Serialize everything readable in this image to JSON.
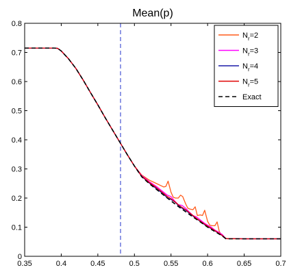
{
  "chart_data": {
    "type": "line",
    "title": "Mean(p)",
    "xlabel": "",
    "ylabel": "",
    "xlim": [
      0.35,
      0.7
    ],
    "ylim": [
      0,
      0.8
    ],
    "xticks": [
      "0.35",
      "0.4",
      "0.45",
      "0.5",
      "0.55",
      "0.6",
      "0.65",
      "0.7"
    ],
    "yticks": [
      "0",
      "0.1",
      "0.2",
      "0.3",
      "0.4",
      "0.5",
      "0.6",
      "0.7",
      "0.8"
    ],
    "grid": false,
    "legend_position": "top-right",
    "vertical_line": {
      "x": 0.481,
      "style": "dashed",
      "color": "#2233cc"
    },
    "series": [
      {
        "name": "N_r=2",
        "color": "#ff5a1a",
        "style": "solid",
        "x": [
          0.35,
          0.385,
          0.39,
          0.395,
          0.4,
          0.41,
          0.42,
          0.43,
          0.44,
          0.45,
          0.46,
          0.47,
          0.48,
          0.49,
          0.5,
          0.51,
          0.52,
          0.53,
          0.535,
          0.54,
          0.543,
          0.546,
          0.55,
          0.553,
          0.556,
          0.56,
          0.563,
          0.566,
          0.57,
          0.573,
          0.576,
          0.58,
          0.583,
          0.586,
          0.59,
          0.593,
          0.596,
          0.6,
          0.603,
          0.606,
          0.61,
          0.613,
          0.616,
          0.62,
          0.623,
          0.627,
          0.65,
          0.7
        ],
        "y": [
          0.715,
          0.715,
          0.715,
          0.714,
          0.705,
          0.678,
          0.645,
          0.605,
          0.562,
          0.52,
          0.476,
          0.434,
          0.392,
          0.35,
          0.31,
          0.279,
          0.262,
          0.25,
          0.244,
          0.238,
          0.24,
          0.258,
          0.22,
          0.203,
          0.2,
          0.2,
          0.21,
          0.205,
          0.18,
          0.165,
          0.162,
          0.16,
          0.17,
          0.14,
          0.142,
          0.14,
          0.158,
          0.12,
          0.107,
          0.105,
          0.105,
          0.118,
          0.085,
          0.07,
          0.064,
          0.06,
          0.06,
          0.06
        ]
      },
      {
        "name": "N_r=3",
        "color": "#ff00ff",
        "style": "solid",
        "x": [
          0.35,
          0.385,
          0.39,
          0.395,
          0.4,
          0.41,
          0.42,
          0.43,
          0.44,
          0.45,
          0.46,
          0.47,
          0.48,
          0.49,
          0.5,
          0.51,
          0.52,
          0.53,
          0.54,
          0.545,
          0.55,
          0.555,
          0.56,
          0.565,
          0.57,
          0.575,
          0.58,
          0.585,
          0.59,
          0.595,
          0.6,
          0.605,
          0.61,
          0.615,
          0.62,
          0.625,
          0.65,
          0.7
        ],
        "y": [
          0.715,
          0.715,
          0.715,
          0.714,
          0.705,
          0.678,
          0.645,
          0.605,
          0.562,
          0.52,
          0.476,
          0.434,
          0.392,
          0.35,
          0.31,
          0.277,
          0.257,
          0.24,
          0.22,
          0.21,
          0.205,
          0.19,
          0.177,
          0.175,
          0.165,
          0.152,
          0.14,
          0.135,
          0.125,
          0.115,
          0.107,
          0.1,
          0.09,
          0.083,
          0.075,
          0.061,
          0.06,
          0.06
        ]
      },
      {
        "name": "N_r=4",
        "color": "#1a1aa8",
        "style": "solid",
        "x": [
          0.35,
          0.385,
          0.39,
          0.395,
          0.4,
          0.41,
          0.42,
          0.43,
          0.44,
          0.45,
          0.46,
          0.47,
          0.48,
          0.49,
          0.5,
          0.51,
          0.52,
          0.53,
          0.54,
          0.545,
          0.55,
          0.555,
          0.56,
          0.565,
          0.57,
          0.575,
          0.58,
          0.585,
          0.59,
          0.595,
          0.6,
          0.605,
          0.61,
          0.615,
          0.62,
          0.625,
          0.65,
          0.7
        ],
        "y": [
          0.715,
          0.715,
          0.715,
          0.714,
          0.705,
          0.678,
          0.645,
          0.605,
          0.562,
          0.52,
          0.476,
          0.434,
          0.392,
          0.35,
          0.31,
          0.274,
          0.252,
          0.232,
          0.213,
          0.2,
          0.195,
          0.187,
          0.175,
          0.165,
          0.158,
          0.148,
          0.138,
          0.128,
          0.12,
          0.11,
          0.102,
          0.095,
          0.087,
          0.079,
          0.071,
          0.061,
          0.06,
          0.06
        ]
      },
      {
        "name": "N_r=5",
        "color": "#e00000",
        "style": "solid",
        "x": [
          0.35,
          0.385,
          0.39,
          0.395,
          0.4,
          0.41,
          0.42,
          0.43,
          0.44,
          0.45,
          0.46,
          0.47,
          0.48,
          0.49,
          0.5,
          0.51,
          0.52,
          0.53,
          0.54,
          0.545,
          0.55,
          0.555,
          0.56,
          0.565,
          0.57,
          0.575,
          0.58,
          0.585,
          0.59,
          0.595,
          0.6,
          0.605,
          0.61,
          0.615,
          0.62,
          0.625,
          0.65,
          0.7
        ],
        "y": [
          0.715,
          0.715,
          0.715,
          0.714,
          0.705,
          0.678,
          0.645,
          0.605,
          0.562,
          0.52,
          0.476,
          0.434,
          0.392,
          0.35,
          0.31,
          0.275,
          0.254,
          0.236,
          0.216,
          0.205,
          0.198,
          0.188,
          0.177,
          0.168,
          0.16,
          0.15,
          0.14,
          0.13,
          0.121,
          0.112,
          0.104,
          0.096,
          0.088,
          0.08,
          0.072,
          0.061,
          0.06,
          0.06
        ]
      },
      {
        "name": "Exact",
        "color": "#000000",
        "style": "dashed",
        "x": [
          0.35,
          0.385,
          0.39,
          0.395,
          0.4,
          0.41,
          0.42,
          0.43,
          0.44,
          0.45,
          0.46,
          0.47,
          0.48,
          0.49,
          0.5,
          0.51,
          0.52,
          0.53,
          0.54,
          0.55,
          0.56,
          0.57,
          0.58,
          0.59,
          0.6,
          0.61,
          0.62,
          0.625,
          0.65,
          0.7
        ],
        "y": [
          0.715,
          0.715,
          0.715,
          0.714,
          0.705,
          0.678,
          0.645,
          0.605,
          0.562,
          0.52,
          0.476,
          0.434,
          0.392,
          0.35,
          0.31,
          0.273,
          0.25,
          0.23,
          0.21,
          0.19,
          0.171,
          0.153,
          0.135,
          0.118,
          0.1,
          0.085,
          0.07,
          0.06,
          0.06,
          0.06
        ]
      }
    ]
  }
}
